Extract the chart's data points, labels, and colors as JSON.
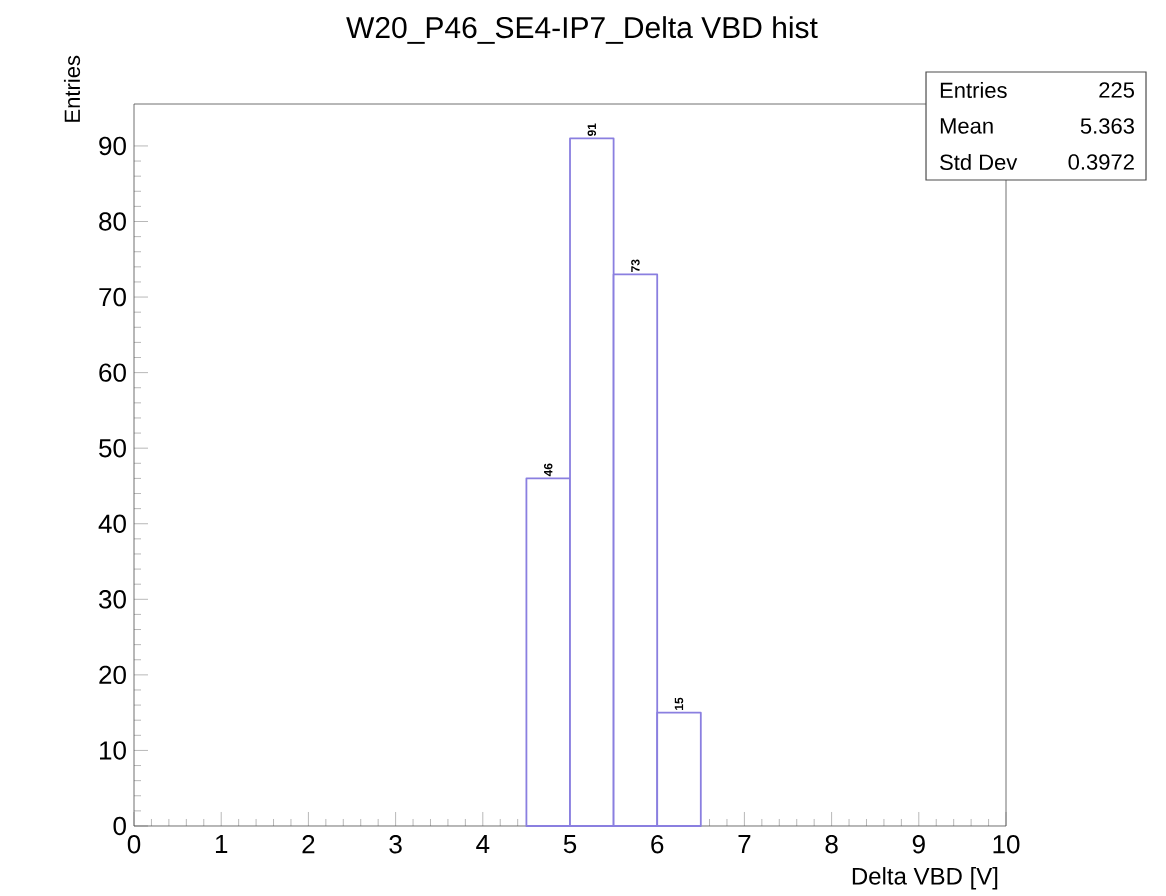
{
  "chart_data": {
    "type": "histogram",
    "title": "W20_P46_SE4-IP7_Delta VBD hist",
    "xlabel": "Delta VBD [V]",
    "ylabel": "Entries",
    "bins": [
      4.5,
      5,
      5.5,
      6,
      6.5
    ],
    "values": [
      46,
      91,
      73,
      15
    ],
    "color": "#8a7fe0",
    "xlim": [
      0,
      10
    ],
    "ylim": [
      0,
      95.55
    ],
    "xticks": [
      0,
      1,
      2,
      3,
      4,
      5,
      6,
      7,
      8,
      9,
      10
    ],
    "yticks": [
      0,
      10,
      20,
      30,
      40,
      50,
      60,
      70,
      80,
      90
    ],
    "data_labels": true,
    "annotations": [
      "Entries",
      "225",
      "Mean",
      "5.363",
      "Std Dev",
      "0.3972"
    ]
  }
}
